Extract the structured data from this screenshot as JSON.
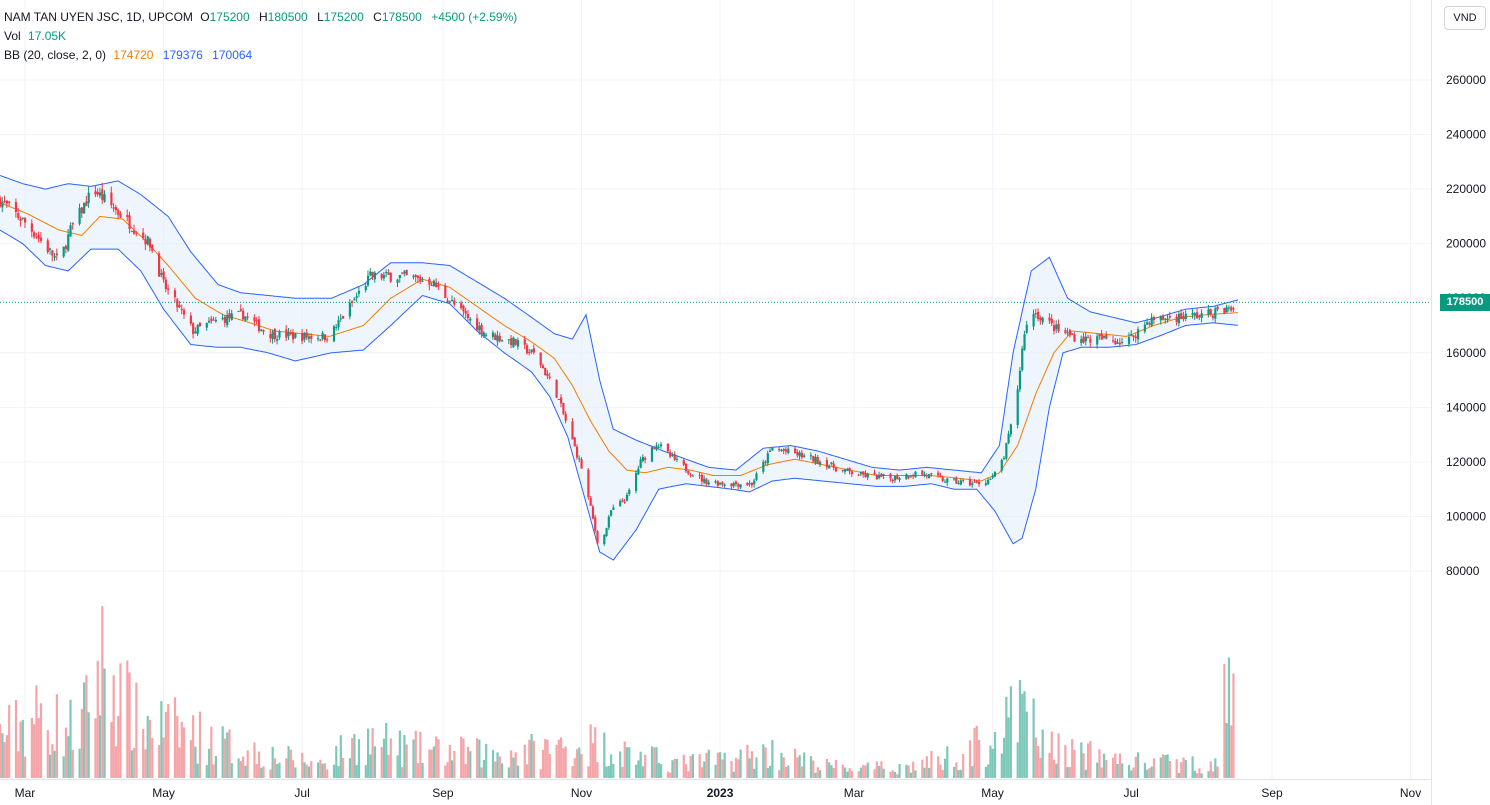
{
  "legend": {
    "symbol": "NAM TAN UYEN JSC, 1D, UPCOM",
    "o_label": "O",
    "o": "175200",
    "h_label": "H",
    "h": "180500",
    "l_label": "L",
    "l": "175200",
    "c_label": "C",
    "c": "178500",
    "change": "+4500 (+2.59%)",
    "vol_label": "Vol",
    "vol": "17.05K",
    "bb_label": "BB (20, close, 2, 0)",
    "bb_basis": "174720",
    "bb_upper": "179376",
    "bb_lower": "170064"
  },
  "currency": "VND",
  "last_price_tag": "178500",
  "colors": {
    "up": "#089981",
    "down": "#f23645",
    "up_vol": "#7dc8b8",
    "down_vol": "#f5a4a8",
    "basis": "#f57c00",
    "band": "#2962ff",
    "band_fill": "#e3eefb"
  },
  "chart_data": {
    "type": "candlestick",
    "title": "NAM TAN UYEN JSC, 1D, UPCOM",
    "y_ticks": [
      80000,
      100000,
      120000,
      140000,
      160000,
      180000,
      200000,
      220000,
      240000,
      260000
    ],
    "x_ticks": [
      {
        "label": "Mar",
        "day": 11
      },
      {
        "label": "May",
        "day": 72
      },
      {
        "label": "Jul",
        "day": 133
      },
      {
        "label": "Sep",
        "day": 195
      },
      {
        "label": "Nov",
        "day": 256
      },
      {
        "label": "2023",
        "day": 317
      },
      {
        "label": "Mar",
        "day": 376
      },
      {
        "label": "May",
        "day": 437
      },
      {
        "label": "Jul",
        "day": 498
      },
      {
        "label": "Sep",
        "day": 560
      },
      {
        "label": "Nov",
        "day": 621
      }
    ],
    "last_close": 178500,
    "series_close": [
      [
        0,
        216000
      ],
      [
        12,
        207000
      ],
      [
        26,
        193000
      ],
      [
        31,
        205000
      ],
      [
        41,
        220000
      ],
      [
        54,
        210000
      ],
      [
        66,
        200000
      ],
      [
        72,
        185000
      ],
      [
        85,
        168000
      ],
      [
        96,
        172000
      ],
      [
        107,
        174000
      ],
      [
        118,
        167000
      ],
      [
        131,
        166000
      ],
      [
        145,
        166000
      ],
      [
        163,
        188000
      ],
      [
        177,
        188000
      ],
      [
        190,
        186000
      ],
      [
        203,
        175000
      ],
      [
        214,
        167000
      ],
      [
        226,
        164000
      ],
      [
        236,
        159000
      ],
      [
        245,
        145000
      ],
      [
        251,
        130000
      ],
      [
        256,
        118000
      ],
      [
        260,
        103000
      ],
      [
        264,
        87000
      ],
      [
        269,
        102000
      ],
      [
        276,
        107000
      ],
      [
        282,
        120000
      ],
      [
        289,
        127000
      ],
      [
        295,
        122000
      ],
      [
        301,
        118000
      ],
      [
        310,
        113000
      ],
      [
        320,
        112000
      ],
      [
        331,
        112000
      ],
      [
        340,
        125000
      ],
      [
        350,
        123000
      ],
      [
        362,
        120000
      ],
      [
        370,
        117000
      ],
      [
        380,
        115000
      ],
      [
        392,
        114000
      ],
      [
        404,
        116000
      ],
      [
        417,
        113000
      ],
      [
        430,
        112000
      ],
      [
        437,
        114000
      ],
      [
        442,
        122000
      ],
      [
        447,
        140000
      ],
      [
        451,
        168000
      ],
      [
        455,
        175000
      ],
      [
        460,
        172000
      ],
      [
        466,
        168000
      ],
      [
        476,
        165000
      ],
      [
        486,
        165000
      ],
      [
        496,
        164000
      ],
      [
        506,
        172000
      ],
      [
        518,
        173000
      ],
      [
        530,
        174000
      ],
      [
        542,
        176000
      ],
      [
        545,
        178500
      ]
    ],
    "bb_basis_points": [
      [
        0,
        215000
      ],
      [
        12,
        211000
      ],
      [
        26,
        205000
      ],
      [
        36,
        203000
      ],
      [
        44,
        210000
      ],
      [
        54,
        209000
      ],
      [
        63,
        202000
      ],
      [
        74,
        192000
      ],
      [
        86,
        180000
      ],
      [
        98,
        174000
      ],
      [
        110,
        171000
      ],
      [
        121,
        168000
      ],
      [
        133,
        167000
      ],
      [
        145,
        166000
      ],
      [
        160,
        170000
      ],
      [
        172,
        180000
      ],
      [
        186,
        187000
      ],
      [
        198,
        184000
      ],
      [
        210,
        177000
      ],
      [
        222,
        170000
      ],
      [
        234,
        164000
      ],
      [
        244,
        158000
      ],
      [
        252,
        148000
      ],
      [
        260,
        135000
      ],
      [
        268,
        124000
      ],
      [
        276,
        117000
      ],
      [
        284,
        116000
      ],
      [
        294,
        118000
      ],
      [
        304,
        117000
      ],
      [
        314,
        115000
      ],
      [
        326,
        115000
      ],
      [
        338,
        119000
      ],
      [
        350,
        121000
      ],
      [
        362,
        119000
      ],
      [
        374,
        117000
      ],
      [
        386,
        115000
      ],
      [
        398,
        115000
      ],
      [
        410,
        115000
      ],
      [
        422,
        114000
      ],
      [
        432,
        113000
      ],
      [
        440,
        116000
      ],
      [
        448,
        126000
      ],
      [
        456,
        145000
      ],
      [
        464,
        160000
      ],
      [
        472,
        168000
      ],
      [
        484,
        167000
      ],
      [
        496,
        166000
      ],
      [
        508,
        170000
      ],
      [
        520,
        173000
      ],
      [
        532,
        174000
      ],
      [
        545,
        174720
      ]
    ],
    "bb_upper_points": [
      [
        0,
        225000
      ],
      [
        10,
        222000
      ],
      [
        20,
        220000
      ],
      [
        30,
        222000
      ],
      [
        40,
        221000
      ],
      [
        52,
        223000
      ],
      [
        62,
        218000
      ],
      [
        74,
        210000
      ],
      [
        84,
        197000
      ],
      [
        96,
        185000
      ],
      [
        106,
        182000
      ],
      [
        118,
        181000
      ],
      [
        130,
        180000
      ],
      [
        146,
        180000
      ],
      [
        160,
        185000
      ],
      [
        172,
        193000
      ],
      [
        186,
        193000
      ],
      [
        198,
        192000
      ],
      [
        210,
        186000
      ],
      [
        222,
        180000
      ],
      [
        234,
        173000
      ],
      [
        244,
        167000
      ],
      [
        252,
        165000
      ],
      [
        258,
        174000
      ],
      [
        264,
        150000
      ],
      [
        270,
        132000
      ],
      [
        280,
        128000
      ],
      [
        292,
        124000
      ],
      [
        302,
        121000
      ],
      [
        312,
        118000
      ],
      [
        324,
        117000
      ],
      [
        336,
        125000
      ],
      [
        348,
        126000
      ],
      [
        360,
        124000
      ],
      [
        372,
        121000
      ],
      [
        384,
        118000
      ],
      [
        396,
        117000
      ],
      [
        408,
        118000
      ],
      [
        420,
        117000
      ],
      [
        432,
        116000
      ],
      [
        440,
        126000
      ],
      [
        446,
        160000
      ],
      [
        454,
        190000
      ],
      [
        462,
        195000
      ],
      [
        470,
        180000
      ],
      [
        480,
        175000
      ],
      [
        490,
        173000
      ],
      [
        500,
        171000
      ],
      [
        510,
        173000
      ],
      [
        522,
        176000
      ],
      [
        534,
        177000
      ],
      [
        545,
        179376
      ]
    ],
    "bb_lower_points": [
      [
        0,
        205000
      ],
      [
        10,
        200000
      ],
      [
        20,
        192000
      ],
      [
        30,
        190000
      ],
      [
        40,
        198000
      ],
      [
        52,
        198000
      ],
      [
        62,
        190000
      ],
      [
        72,
        176000
      ],
      [
        84,
        163000
      ],
      [
        96,
        162000
      ],
      [
        106,
        162000
      ],
      [
        118,
        160000
      ],
      [
        130,
        157000
      ],
      [
        146,
        160000
      ],
      [
        160,
        161000
      ],
      [
        172,
        170000
      ],
      [
        186,
        181000
      ],
      [
        198,
        178000
      ],
      [
        210,
        168000
      ],
      [
        222,
        160000
      ],
      [
        234,
        153000
      ],
      [
        242,
        144000
      ],
      [
        250,
        129000
      ],
      [
        258,
        105000
      ],
      [
        264,
        87000
      ],
      [
        270,
        84000
      ],
      [
        280,
        95000
      ],
      [
        290,
        110000
      ],
      [
        302,
        112000
      ],
      [
        312,
        111000
      ],
      [
        322,
        110000
      ],
      [
        330,
        109000
      ],
      [
        340,
        113000
      ],
      [
        350,
        114000
      ],
      [
        362,
        113000
      ],
      [
        374,
        112000
      ],
      [
        386,
        111000
      ],
      [
        398,
        111000
      ],
      [
        410,
        112000
      ],
      [
        420,
        110000
      ],
      [
        430,
        110000
      ],
      [
        438,
        102000
      ],
      [
        446,
        90000
      ],
      [
        450,
        92000
      ],
      [
        456,
        110000
      ],
      [
        462,
        140000
      ],
      [
        468,
        160000
      ],
      [
        476,
        162000
      ],
      [
        488,
        162000
      ],
      [
        500,
        163000
      ],
      [
        510,
        166000
      ],
      [
        522,
        170000
      ],
      [
        534,
        171000
      ],
      [
        545,
        170064
      ]
    ],
    "volume_points": [
      [
        0,
        26000
      ],
      [
        15,
        38000
      ],
      [
        35,
        30000
      ],
      [
        45,
        72000
      ],
      [
        60,
        36000
      ],
      [
        80,
        30000
      ],
      [
        100,
        20000
      ],
      [
        120,
        14000
      ],
      [
        140,
        9000
      ],
      [
        160,
        24000
      ],
      [
        180,
        18000
      ],
      [
        200,
        16000
      ],
      [
        220,
        15000
      ],
      [
        240,
        18000
      ],
      [
        260,
        22000
      ],
      [
        280,
        14000
      ],
      [
        300,
        9000
      ],
      [
        320,
        12000
      ],
      [
        340,
        16000
      ],
      [
        360,
        8000
      ],
      [
        380,
        6000
      ],
      [
        400,
        7000
      ],
      [
        420,
        14000
      ],
      [
        440,
        26000
      ],
      [
        450,
        44000
      ],
      [
        460,
        20000
      ],
      [
        480,
        14000
      ],
      [
        500,
        10000
      ],
      [
        520,
        9000
      ],
      [
        536,
        8000
      ],
      [
        540,
        60000
      ],
      [
        543,
        40000
      ],
      [
        545,
        17050
      ]
    ]
  }
}
